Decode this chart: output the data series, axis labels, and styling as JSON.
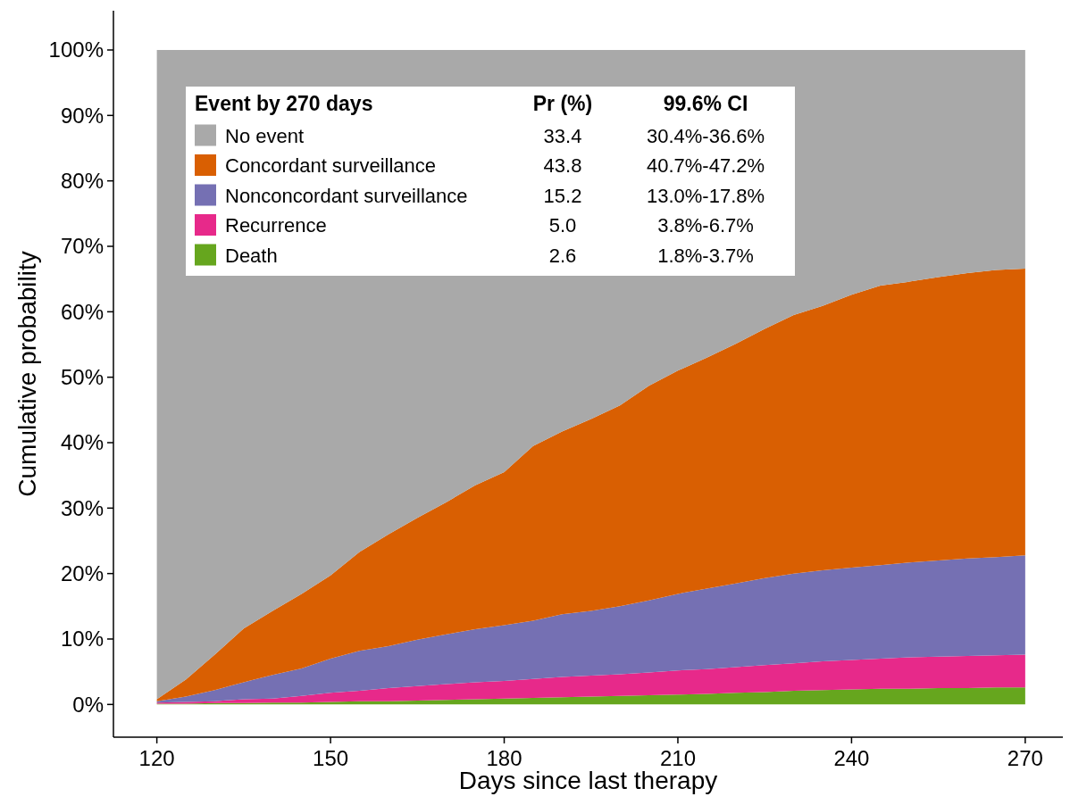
{
  "chart_data": {
    "type": "area",
    "stacked": true,
    "xlabel": "Days since last therapy",
    "ylabel": "Cumulative probability",
    "legend_title": "Event by 270 days",
    "legend": "top left",
    "grid": false,
    "xlim": [
      112.5,
      276.5
    ],
    "xticks": [
      120,
      150,
      180,
      210,
      240,
      270
    ],
    "ylim": [
      -5,
      106
    ],
    "yticks": [
      {
        "value": 0,
        "label": "0%"
      },
      {
        "value": 10,
        "label": "10%"
      },
      {
        "value": 20,
        "label": "20%"
      },
      {
        "value": 30,
        "label": "30%"
      },
      {
        "value": 40,
        "label": "40%"
      },
      {
        "value": 50,
        "label": "50%"
      },
      {
        "value": 60,
        "label": "60%"
      },
      {
        "value": 70,
        "label": "70%"
      },
      {
        "value": 80,
        "label": "80%"
      },
      {
        "value": 90,
        "label": "90%"
      },
      {
        "value": 100,
        "label": "100%"
      }
    ],
    "x": [
      120,
      125,
      130,
      135,
      140,
      145,
      150,
      155,
      160,
      165,
      170,
      175,
      180,
      185,
      190,
      195,
      200,
      205,
      210,
      215,
      220,
      225,
      230,
      235,
      240,
      245,
      250,
      255,
      260,
      265,
      270
    ],
    "series": [
      {
        "name": "Death",
        "color": "#66a61e",
        "values": [
          0.1,
          0.1,
          0.2,
          0.2,
          0.3,
          0.3,
          0.4,
          0.5,
          0.5,
          0.6,
          0.7,
          0.8,
          0.9,
          1.0,
          1.1,
          1.2,
          1.3,
          1.4,
          1.5,
          1.6,
          1.8,
          1.9,
          2.1,
          2.2,
          2.3,
          2.4,
          2.4,
          2.5,
          2.5,
          2.6,
          2.6
        ]
      },
      {
        "name": "Recurrence",
        "color": "#e7298a",
        "values": [
          0.2,
          0.3,
          0.3,
          0.6,
          0.6,
          1.0,
          1.4,
          1.6,
          2.0,
          2.2,
          2.4,
          2.6,
          2.7,
          2.9,
          3.1,
          3.2,
          3.3,
          3.5,
          3.7,
          3.8,
          3.9,
          4.1,
          4.2,
          4.4,
          4.5,
          4.6,
          4.8,
          4.8,
          4.9,
          4.9,
          5.0
        ]
      },
      {
        "name": "Nonconcordant surveillance",
        "color": "#7570b3",
        "values": [
          0.2,
          0.8,
          1.7,
          2.6,
          3.6,
          4.2,
          5.2,
          6.1,
          6.4,
          7.1,
          7.6,
          8.1,
          8.5,
          8.9,
          9.6,
          9.9,
          10.4,
          11.0,
          11.7,
          12.3,
          12.8,
          13.3,
          13.7,
          13.9,
          14.1,
          14.3,
          14.5,
          14.7,
          14.9,
          15.0,
          15.2
        ]
      },
      {
        "name": "Concordant surveillance",
        "color": "#d95f02",
        "values": [
          0.3,
          2.6,
          5.4,
          8.2,
          9.8,
          11.4,
          12.7,
          15.1,
          17.1,
          18.6,
          20.2,
          22.0,
          23.4,
          26.7,
          27.9,
          29.3,
          30.7,
          32.8,
          34.1,
          35.3,
          36.6,
          38.1,
          39.5,
          40.4,
          41.7,
          42.7,
          42.9,
          43.3,
          43.6,
          43.9,
          43.8
        ]
      },
      {
        "name": "No event",
        "color": "#a9a9a9",
        "values": [
          99.2,
          96.2,
          92.4,
          88.4,
          85.7,
          83.1,
          80.3,
          76.7,
          74.0,
          71.5,
          69.1,
          66.5,
          64.5,
          60.5,
          58.3,
          56.4,
          54.3,
          51.3,
          49.0,
          47.0,
          44.9,
          42.6,
          40.5,
          39.1,
          37.4,
          36.0,
          35.4,
          34.7,
          34.1,
          33.6,
          33.4
        ]
      }
    ],
    "annotations": [
      "Pr (%)",
      "99.6% CI",
      "33.4",
      "30.4%-36.6%",
      "43.8",
      "40.7%-47.2%",
      "15.2",
      "13.0%-17.8%",
      "5.0",
      "3.8%-6.7%",
      "2.6",
      "1.8%-3.7%"
    ]
  }
}
